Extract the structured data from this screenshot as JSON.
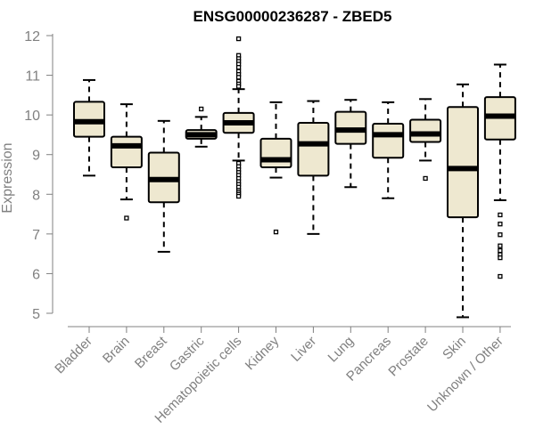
{
  "chart_data": {
    "type": "box",
    "title": "ENSG00000236287 - ZBED5",
    "xlabel": "",
    "ylabel": "Expression",
    "ylim": [
      5,
      12
    ],
    "yticks": [
      5,
      6,
      7,
      8,
      9,
      10,
      11,
      12
    ],
    "colors": {
      "box_fill": "#EEE8D0",
      "stroke": "#000000",
      "axis_text": "#808080",
      "title": "#000000"
    },
    "categories": [
      "Bladder",
      "Brain",
      "Breast",
      "Gastric",
      "Hematopoietic cells",
      "Kidney",
      "Liver",
      "Lung",
      "Pancreas",
      "Prostate",
      "Skin",
      "Unknown / Other"
    ],
    "series": [
      {
        "name": "Bladder",
        "min": 8.47,
        "q1": 9.45,
        "median": 9.83,
        "q3": 10.33,
        "max": 10.88,
        "outliers": []
      },
      {
        "name": "Brain",
        "min": 7.87,
        "q1": 8.68,
        "median": 9.22,
        "q3": 9.45,
        "max": 10.27,
        "outliers": [
          7.4
        ]
      },
      {
        "name": "Breast",
        "min": 6.55,
        "q1": 7.8,
        "median": 8.37,
        "q3": 9.05,
        "max": 9.85,
        "outliers": []
      },
      {
        "name": "Gastric",
        "min": 9.2,
        "q1": 9.4,
        "median": 9.5,
        "q3": 9.62,
        "max": 9.95,
        "outliers": [
          10.15
        ]
      },
      {
        "name": "Hematopoietic cells",
        "min": 8.85,
        "q1": 9.55,
        "median": 9.8,
        "q3": 10.05,
        "max": 10.65,
        "outliers": [
          11.92,
          11.5,
          11.42,
          11.35,
          11.28,
          11.2,
          11.1,
          11.02,
          10.95,
          10.85,
          10.78,
          10.72,
          8.78,
          8.7,
          8.62,
          8.55,
          8.48,
          8.4,
          8.32,
          8.25,
          8.18,
          8.1,
          8.05,
          8.0,
          7.95
        ]
      },
      {
        "name": "Kidney",
        "min": 8.42,
        "q1": 8.68,
        "median": 8.87,
        "q3": 9.4,
        "max": 10.32,
        "outliers": [
          7.05
        ]
      },
      {
        "name": "Liver",
        "min": 7.0,
        "q1": 8.47,
        "median": 9.27,
        "q3": 9.8,
        "max": 10.35,
        "outliers": []
      },
      {
        "name": "Lung",
        "min": 8.18,
        "q1": 9.27,
        "median": 9.62,
        "q3": 10.08,
        "max": 10.38,
        "outliers": []
      },
      {
        "name": "Pancreas",
        "min": 7.9,
        "q1": 8.92,
        "median": 9.5,
        "q3": 9.78,
        "max": 10.32,
        "outliers": []
      },
      {
        "name": "Prostate",
        "min": 8.85,
        "q1": 9.32,
        "median": 9.52,
        "q3": 9.88,
        "max": 10.4,
        "outliers": [
          8.4
        ]
      },
      {
        "name": "Skin",
        "min": 4.9,
        "q1": 7.42,
        "median": 8.65,
        "q3": 10.2,
        "max": 10.77,
        "outliers": []
      },
      {
        "name": "Unknown / Other",
        "min": 7.85,
        "q1": 9.38,
        "median": 9.97,
        "q3": 10.45,
        "max": 11.27,
        "outliers": [
          7.48,
          7.25,
          6.98,
          6.7,
          6.58,
          6.48,
          6.4,
          5.93
        ]
      }
    ]
  }
}
